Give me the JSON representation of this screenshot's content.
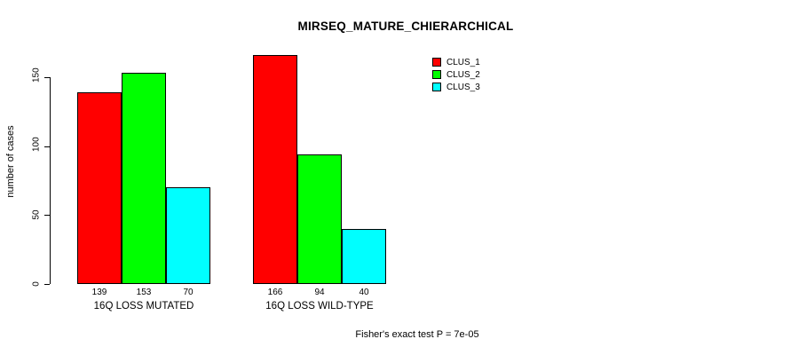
{
  "title": "MIRSEQ_MATURE_CHIERARCHICAL",
  "footer": "Fisher's exact test P = 7e-05",
  "colors": {
    "background": "#FFFFFF",
    "axis": "#000000",
    "bar_border": "#000000",
    "clus_1": "#FF0000",
    "clus_2": "#00FF00",
    "clus_3": "#00FFFF"
  },
  "chart_data": {
    "type": "bar",
    "title": "MIRSEQ_MATURE_CHIERARCHICAL",
    "ylabel": "number of cases",
    "xlabel": "",
    "categories": [
      "16Q LOSS MUTATED",
      "16Q LOSS WILD-TYPE"
    ],
    "series": [
      {
        "name": "CLUS_1",
        "color": "#FF0000",
        "values": [
          139,
          166
        ]
      },
      {
        "name": "CLUS_2",
        "color": "#00FF00",
        "values": [
          153,
          94
        ]
      },
      {
        "name": "CLUS_3",
        "color": "#00FFFF",
        "values": [
          70,
          40
        ]
      }
    ],
    "bar_value_labels": [
      [
        139,
        153,
        70
      ],
      [
        166,
        94,
        40
      ]
    ],
    "yticks": [
      0,
      50,
      100,
      150
    ],
    "ylim": [
      0,
      166
    ],
    "grid": false,
    "legend_position": "top-right",
    "annotation": "Fisher's exact test P = 7e-05"
  }
}
